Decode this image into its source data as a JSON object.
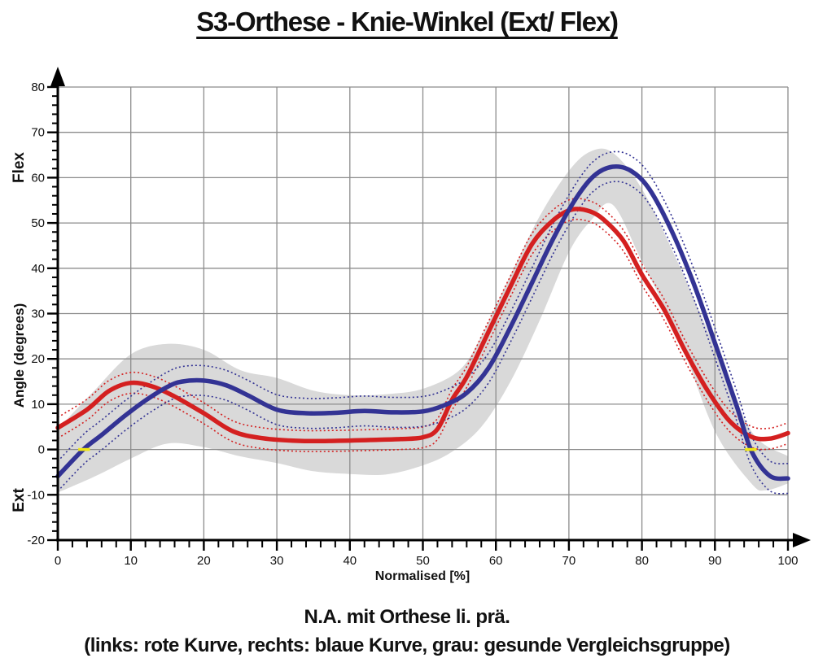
{
  "title": "S3-Orthese - Knie-Winkel (Ext/ Flex)",
  "caption": {
    "line1": "N.A. mit Orthese li. prä.",
    "line2": "(links: rote Kurve, rechts: blaue Kurve, grau: gesunde Vergleichsgruppe)"
  },
  "colors": {
    "red_curve": "#d42020",
    "blue_curve": "#333394",
    "reference_band": "#d9d9d9",
    "grid": "#8c8c8c",
    "axis": "#000000",
    "event_marker": "#efe614",
    "text": "#111111"
  },
  "chart_data": {
    "type": "line",
    "title": "S3-Orthese - Knie-Winkel (Ext/ Flex)",
    "xlabel": "Normalised [%]",
    "ylabel": "Angle (degrees)",
    "y_upper_label": "Flex",
    "y_lower_label": "Ext",
    "x_axis": {
      "min": 0,
      "max": 100,
      "tick_step": 10,
      "minor_step": 2,
      "tick_labels": [
        "0",
        "10",
        "20",
        "30",
        "40",
        "50",
        "60",
        "70",
        "80",
        "90",
        "100"
      ]
    },
    "y_axis": {
      "min": -20,
      "max": 80,
      "tick_step": 10,
      "minor_step": 2,
      "tick_labels": [
        "-20",
        "-10",
        "0",
        "10",
        "20",
        "30",
        "40",
        "50",
        "60",
        "70",
        "80"
      ]
    },
    "grid": true,
    "series": [
      {
        "name": "rote Kurve (links)",
        "style": "solid",
        "color_key": "red_curve",
        "sd": 2.3,
        "x": [
          0,
          4,
          7,
          10,
          13,
          16,
          20,
          24,
          28,
          33,
          38,
          43,
          47,
          50,
          52,
          54,
          56,
          59,
          62,
          65,
          68,
          70.5,
          73,
          75,
          77.5,
          80,
          83,
          86,
          89,
          92,
          95,
          97.5,
          100
        ],
        "y": [
          4.8,
          8.8,
          12.9,
          14.7,
          13.9,
          11.7,
          8.0,
          4.0,
          2.5,
          1.9,
          1.9,
          2.1,
          2.3,
          2.7,
          4.5,
          11.0,
          16.0,
          26.0,
          36.0,
          45.5,
          50.8,
          53.0,
          52.5,
          50.4,
          46.0,
          38.6,
          31.0,
          21.5,
          13.0,
          6.3,
          2.8,
          2.4,
          3.6
        ]
      },
      {
        "name": "blaue Kurve (rechts)",
        "style": "solid",
        "color_key": "blue_curve",
        "sd": 3.3,
        "x": [
          0,
          3.5,
          6,
          9,
          12,
          15,
          17,
          20,
          23,
          26,
          30,
          34,
          38,
          42,
          46,
          50,
          53,
          56,
          59,
          62,
          65,
          68,
          71,
          73.5,
          76,
          78.5,
          81,
          84,
          87,
          90,
          93,
          95,
          97.5,
          100
        ],
        "y": [
          -5.9,
          0.0,
          3.2,
          7.2,
          10.8,
          13.8,
          15.0,
          15.2,
          14.2,
          12.0,
          8.8,
          8.0,
          8.1,
          8.5,
          8.2,
          8.4,
          9.8,
          12.5,
          18.0,
          27.0,
          37.0,
          47.0,
          55.5,
          60.5,
          62.4,
          61.5,
          57.5,
          48.5,
          37.0,
          23.5,
          9.5,
          -0.3,
          -5.8,
          -6.4
        ]
      }
    ],
    "reference_band": {
      "name": "gesunde Vergleichsgruppe",
      "color_key": "reference_band",
      "upper": {
        "x": [
          0,
          5,
          10,
          15,
          20,
          25,
          30,
          35,
          40,
          45,
          50,
          55,
          58,
          62,
          66,
          70,
          73,
          76,
          80,
          85,
          90,
          95,
          100
        ],
        "y": [
          4.5,
          13.0,
          21.0,
          23.3,
          22.0,
          17.5,
          15.8,
          13.0,
          12.0,
          12.2,
          13.4,
          17.5,
          25.0,
          38.5,
          51.5,
          61.5,
          65.8,
          65.5,
          57.5,
          41.0,
          22.5,
          4.0,
          -1.5
        ]
      },
      "lower": {
        "x": [
          0,
          5,
          10,
          15,
          20,
          25,
          30,
          35,
          40,
          45,
          50,
          54,
          58,
          62,
          66,
          70,
          73,
          76,
          80,
          85,
          90,
          95,
          97,
          100
        ],
        "y": [
          -9.5,
          -6.0,
          -2.0,
          1.3,
          0.5,
          -1.5,
          -3.0,
          -4.8,
          -5.4,
          -5.5,
          -3.5,
          -0.5,
          5.0,
          15.0,
          28.5,
          43.5,
          50.5,
          54.0,
          41.5,
          25.0,
          4.0,
          -7.5,
          -9.0,
          -7.5
        ]
      }
    },
    "event_markers": [
      {
        "x": 3.6,
        "y": 0,
        "half_width_pct": 0.8
      },
      {
        "x": 94.9,
        "y": 0,
        "half_width_pct": 0.8
      }
    ]
  }
}
